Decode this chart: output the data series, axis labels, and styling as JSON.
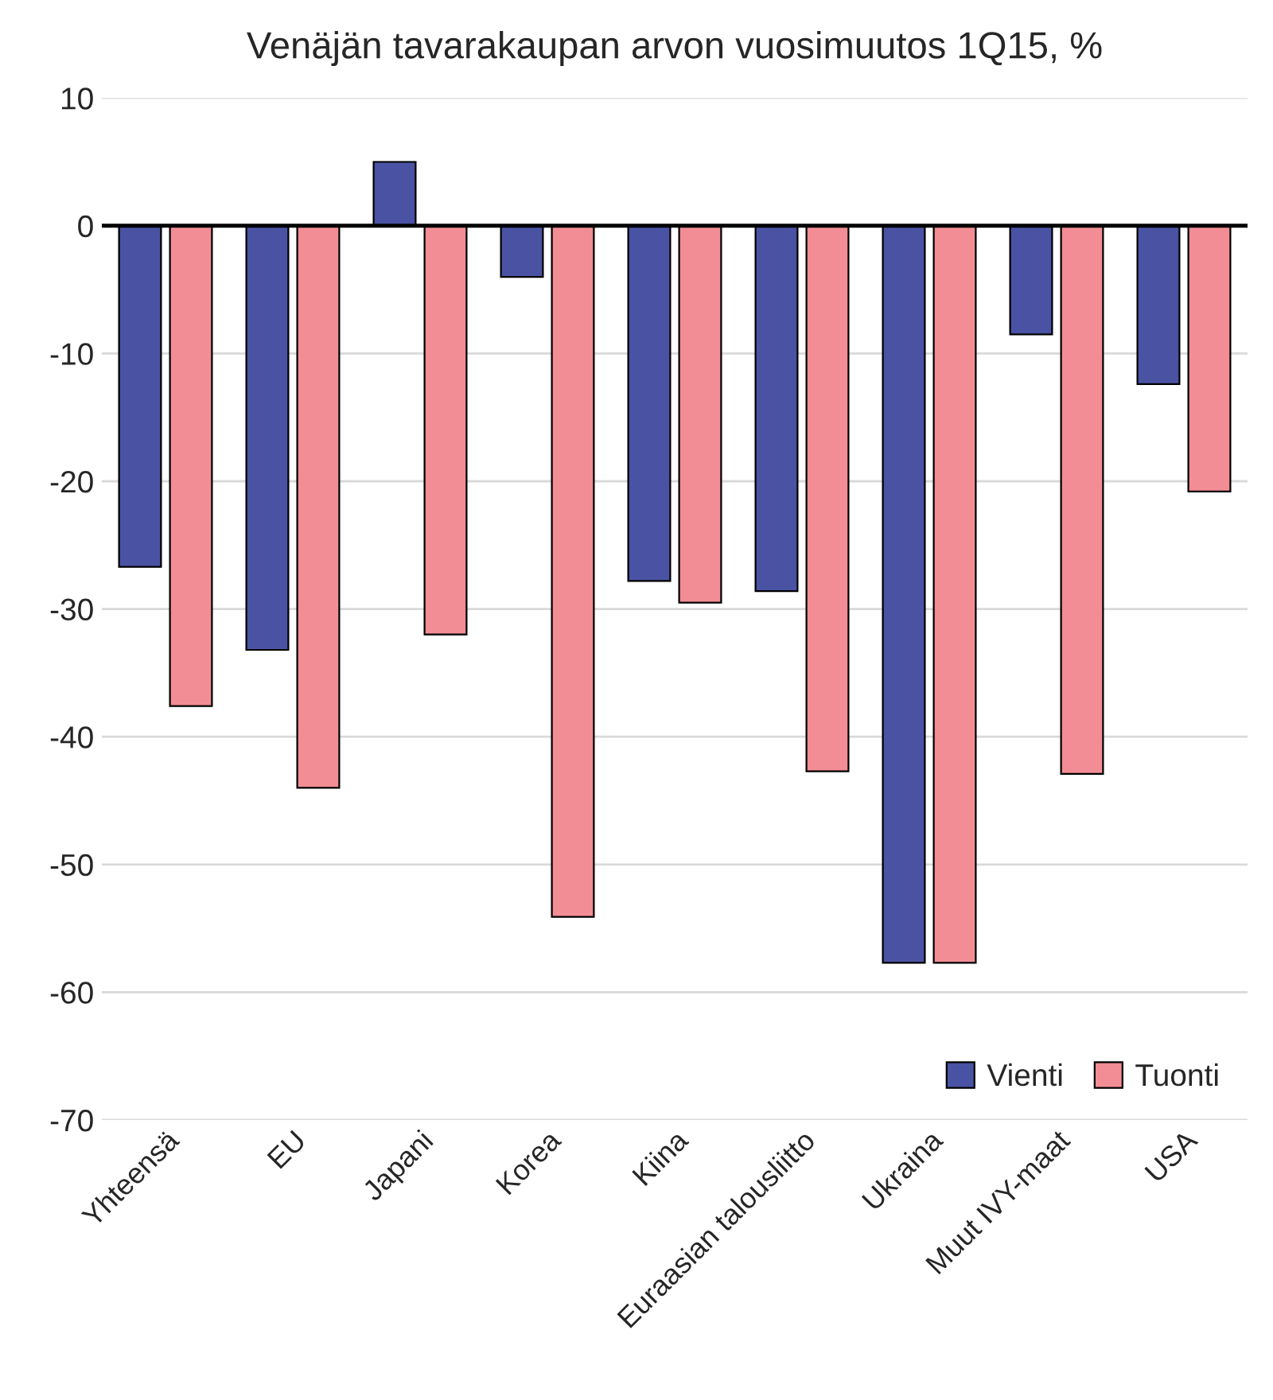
{
  "chart_data": {
    "type": "bar",
    "title": "Venäjän tavarakaupan arvon vuosimuutos 1Q15, %",
    "categories": [
      "Yhteensä",
      "EU",
      "Japani",
      "Korea",
      "Kiina",
      "Euraasian talousliitto",
      "Ukraina",
      "Muut IVY-maat",
      "USA"
    ],
    "series": [
      {
        "name": "Vienti",
        "color": "#4a53a3",
        "values": [
          -26.7,
          -33.2,
          5.0,
          -4.0,
          -27.8,
          -28.6,
          -57.7,
          -8.5,
          -12.4
        ]
      },
      {
        "name": "Tuonti",
        "color": "#f28d95",
        "values": [
          -37.6,
          -44.0,
          -32.0,
          -54.1,
          -29.5,
          -42.7,
          -57.7,
          -42.9,
          -20.8
        ]
      }
    ],
    "ylim": [
      -70,
      10
    ],
    "yticks": [
      -70,
      -60,
      -50,
      -40,
      -30,
      -20,
      -10,
      0,
      10
    ],
    "grid": "y",
    "legend": "bottom right"
  }
}
